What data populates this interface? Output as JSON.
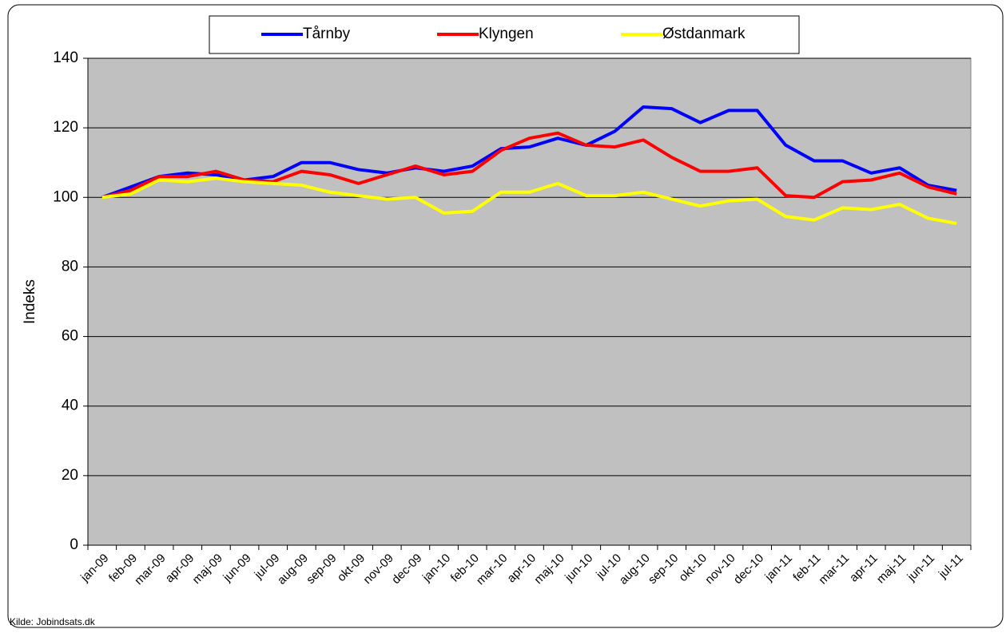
{
  "chart_data": {
    "type": "line",
    "y_label": "Indeks",
    "source": "Kilde: Jobindsats.dk",
    "categories": [
      "jan-09",
      "feb-09",
      "mar-09",
      "apr-09",
      "maj-09",
      "jun-09",
      "jul-09",
      "aug-09",
      "sep-09",
      "okt-09",
      "nov-09",
      "dec-09",
      "jan-10",
      "feb-10",
      "mar-10",
      "apr-10",
      "maj-10",
      "jun-10",
      "jul-10",
      "aug-10",
      "sep-10",
      "okt-10",
      "nov-10",
      "dec-10",
      "jan-11",
      "feb-11",
      "mar-11",
      "apr-11",
      "maj-11",
      "jun-11",
      "jul-11"
    ],
    "series": [
      {
        "name": "Tårnby",
        "color": "#0000ff",
        "values": [
          100,
          103,
          106,
          107,
          106.5,
          105,
          106,
          110,
          110,
          108,
          107,
          108.5,
          107.5,
          109,
          114,
          114.5,
          117,
          115,
          119,
          126,
          125.5,
          121.5,
          125,
          125,
          115,
          110.5,
          110.5,
          107,
          108.5,
          103.5,
          102
        ]
      },
      {
        "name": "Klyngen",
        "color": "#ff0000",
        "values": [
          100,
          102,
          106,
          106,
          107.5,
          105,
          104.5,
          107.5,
          106.5,
          104,
          106.5,
          109,
          106.5,
          107.5,
          113.5,
          117,
          118.5,
          115,
          114.5,
          116.5,
          111.5,
          107.5,
          107.5,
          108.5,
          100.5,
          100,
          104.5,
          105,
          107,
          103,
          101
        ]
      },
      {
        "name": "Østdanmark",
        "color": "#ffff00",
        "values": [
          100,
          101,
          105,
          104.5,
          105.5,
          104.5,
          104,
          103.5,
          101.5,
          100.5,
          99.5,
          100,
          95.5,
          96,
          101.5,
          101.5,
          104,
          100.5,
          100.5,
          101.5,
          99.5,
          97.5,
          99,
          99.5,
          94.5,
          93.5,
          97,
          96.5,
          98,
          94,
          92.5
        ]
      }
    ],
    "ylim": [
      0,
      140
    ],
    "yticks": [
      0,
      20,
      40,
      60,
      80,
      100,
      120,
      140
    ],
    "grid": true,
    "legend": "top"
  }
}
